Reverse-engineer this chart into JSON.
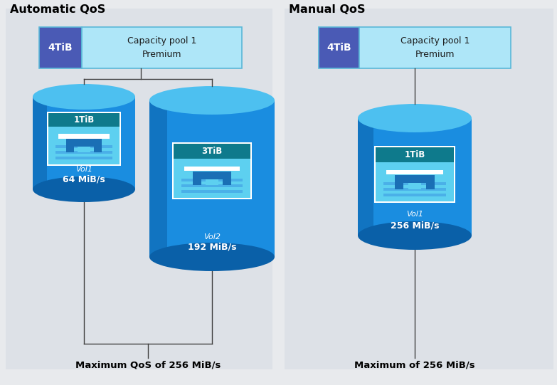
{
  "bg_color": "#e8eaed",
  "panel_bg": "#dde1e7",
  "left_title": "Automatic QoS",
  "right_title": "Manual QoS",
  "capacity_pool_label": "4TiB",
  "capacity_pool_text": "Capacity pool 1\nPremium",
  "cap_label_color": "#4a5ab5",
  "cap_box_color": "#aee6f8",
  "cap_box_border": "#5ab8d8",
  "cylinder_body": "#1a8de0",
  "cylinder_top": "#4dc0f0",
  "cylinder_dark": "#0a60a8",
  "cylinder_left_shade": "#0f72c0",
  "icon_border": "#ffffff",
  "icon_header_bg": "#0e7a8c",
  "icon_body_bg": "#5dd0f0",
  "icon_chip_bg": "#1a6fb5",
  "icon_chip_white": "#ffffff",
  "icon_chip_stripe": "#4ab0e8",
  "line_color": "#404040",
  "text_white": "#ffffff",
  "text_dark": "#1a1a1a",
  "text_italic_blue": "#5ab0e0",
  "left_vol1_label": "1TiB",
  "left_vol2_label": "3TiB",
  "right_vol1_label": "1TiB",
  "left_vol1_name": "Vol1",
  "left_vol2_name": "Vol2",
  "right_vol1_name": "Vol1",
  "left_vol1_speed": "64 MiB/s",
  "left_vol2_speed": "192 MiB/s",
  "right_vol1_speed": "256 MiB/s",
  "left_bottom_text": "Maximum QoS of 256 MiB/s",
  "right_bottom_text": "Maximum of 256 MiB/s"
}
